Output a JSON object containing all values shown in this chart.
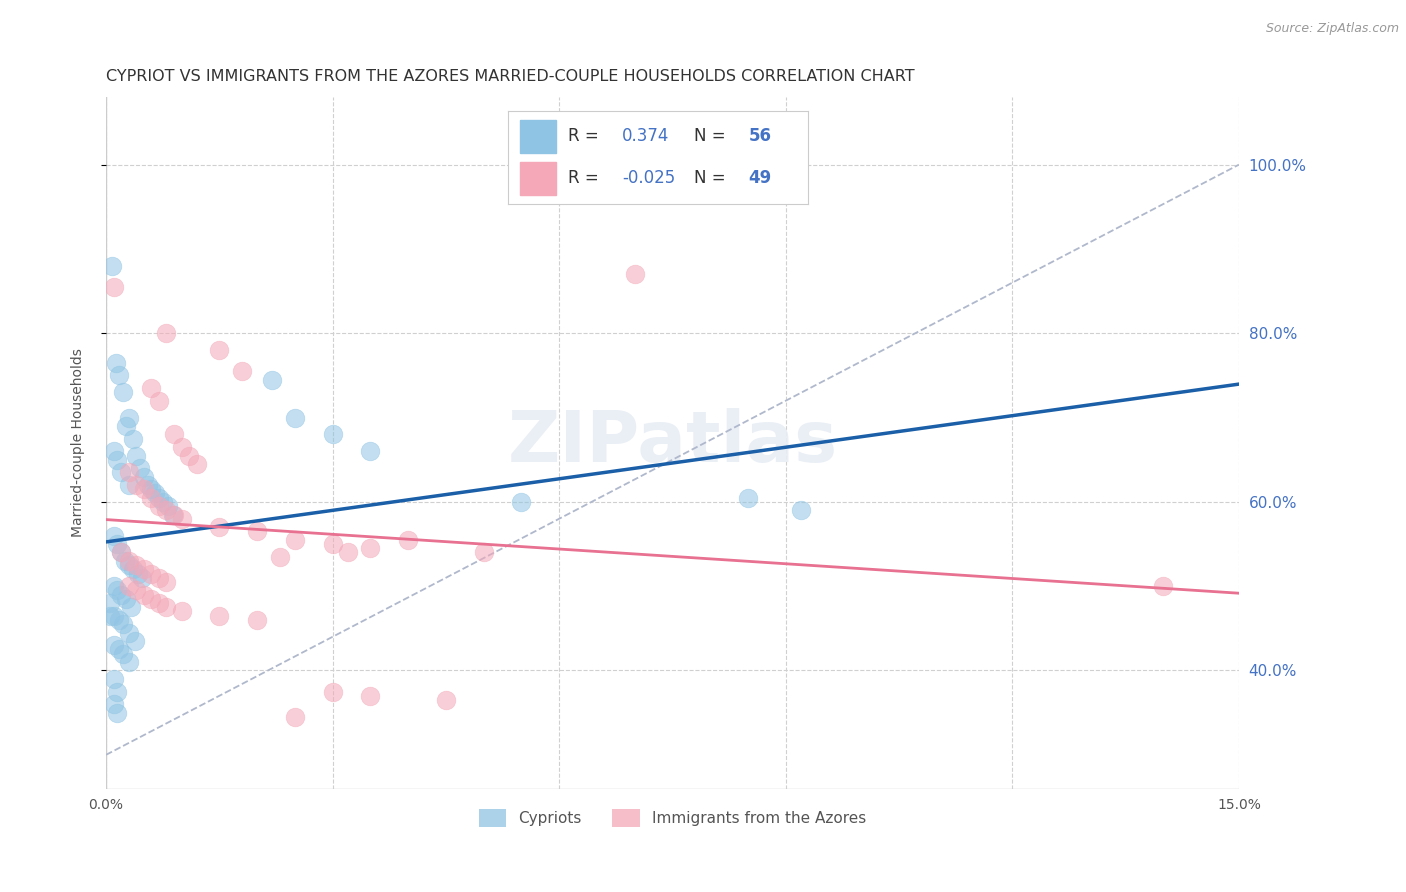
{
  "title": "CYPRIOT VS IMMIGRANTS FROM THE AZORES MARRIED-COUPLE HOUSEHOLDS CORRELATION CHART",
  "source": "Source: ZipAtlas.com",
  "ylabel": "Married-couple Households",
  "legend_label1": "Cypriots",
  "legend_label2": "Immigrants from the Azores",
  "R1": 0.374,
  "N1": 56,
  "R2": -0.025,
  "N2": 49,
  "xlim": [
    0.0,
    15.0
  ],
  "ylim": [
    26.0,
    108.0
  ],
  "blue_color": "#90c4e4",
  "pink_color": "#f4a8b8",
  "blue_line_color": "#1a5fa8",
  "pink_line_color": "#e87090",
  "diag_color": "#b0b8cc",
  "grid_color": "#d0d0d0",
  "background_color": "#ffffff",
  "title_fontsize": 11.5,
  "blue_dots_x": [
    0.08,
    0.13,
    0.17,
    0.22,
    0.26,
    0.3,
    0.35,
    0.4,
    0.45,
    0.5,
    0.55,
    0.6,
    0.65,
    0.7,
    0.75,
    0.82,
    0.88,
    0.1,
    0.15,
    0.2,
    0.25,
    0.3,
    0.35,
    0.42,
    0.48,
    0.1,
    0.15,
    0.2,
    0.27,
    0.33,
    0.1,
    0.17,
    0.23,
    0.3,
    0.38,
    0.1,
    0.17,
    0.22,
    0.3,
    0.1,
    0.15,
    0.2,
    0.3,
    0.05,
    0.1,
    0.15,
    2.2,
    2.5,
    3.0,
    3.5,
    5.5,
    8.5,
    9.2,
    0.05,
    0.1,
    0.15
  ],
  "blue_dots_y": [
    88.0,
    76.5,
    75.0,
    73.0,
    69.0,
    70.0,
    67.5,
    65.5,
    64.0,
    63.0,
    62.0,
    61.5,
    61.0,
    60.5,
    60.0,
    59.5,
    58.5,
    56.0,
    55.0,
    54.0,
    53.0,
    52.5,
    52.0,
    51.5,
    51.0,
    50.0,
    49.5,
    49.0,
    48.5,
    47.5,
    46.5,
    46.0,
    45.5,
    44.5,
    43.5,
    43.0,
    42.5,
    42.0,
    41.0,
    66.0,
    65.0,
    63.5,
    62.0,
    46.5,
    39.0,
    37.5,
    74.5,
    70.0,
    68.0,
    66.0,
    60.0,
    60.5,
    59.0,
    48.0,
    36.0,
    35.0
  ],
  "pink_dots_x": [
    0.1,
    1.5,
    0.6,
    0.7,
    0.8,
    1.8,
    0.9,
    1.0,
    1.1,
    1.2,
    0.3,
    0.4,
    0.5,
    0.6,
    0.7,
    0.8,
    0.9,
    1.0,
    1.5,
    2.0,
    2.5,
    3.0,
    3.5,
    4.0,
    5.0,
    0.2,
    0.3,
    0.4,
    0.5,
    0.6,
    0.7,
    0.8,
    0.3,
    0.4,
    0.5,
    0.6,
    0.7,
    0.8,
    1.0,
    1.5,
    2.0,
    3.0,
    3.5,
    4.5,
    2.5,
    14.0,
    7.0,
    2.3,
    3.2
  ],
  "pink_dots_y": [
    85.5,
    78.0,
    73.5,
    72.0,
    80.0,
    75.5,
    68.0,
    66.5,
    65.5,
    64.5,
    63.5,
    62.0,
    61.5,
    60.5,
    59.5,
    59.0,
    58.5,
    58.0,
    57.0,
    56.5,
    55.5,
    55.0,
    54.5,
    55.5,
    54.0,
    54.0,
    53.0,
    52.5,
    52.0,
    51.5,
    51.0,
    50.5,
    50.0,
    49.5,
    49.0,
    48.5,
    48.0,
    47.5,
    47.0,
    46.5,
    46.0,
    37.5,
    37.0,
    36.5,
    34.5,
    50.0,
    87.0,
    53.5,
    54.0
  ]
}
